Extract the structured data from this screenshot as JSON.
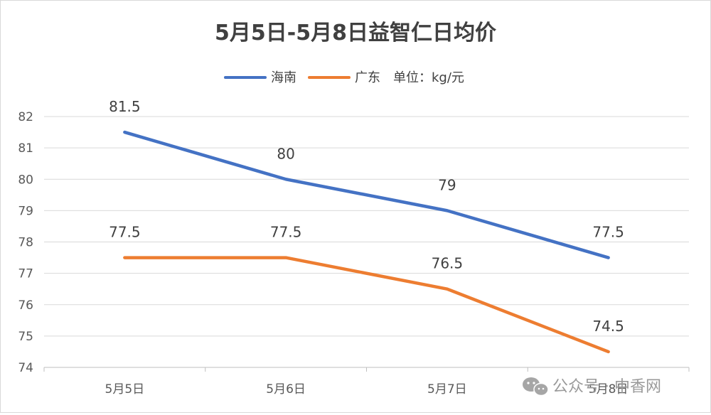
{
  "chart_data": {
    "type": "line",
    "title": "5月5日-5月8日益智仁日均价",
    "categories": [
      "5月5日",
      "5月6日",
      "5月7日",
      "5月8日"
    ],
    "series": [
      {
        "name": "海南",
        "color": "#4472C4",
        "values": [
          81.5,
          80,
          79,
          77.5
        ],
        "labels": [
          "81.5",
          "80",
          "79",
          "77.5"
        ]
      },
      {
        "name": "广东",
        "color": "#ED7D31",
        "values": [
          77.5,
          77.5,
          76.5,
          74.5
        ],
        "labels": [
          "77.5",
          "77.5",
          "76.5",
          "74.5"
        ]
      }
    ],
    "legend_note": "单位：kg/元",
    "ylim": [
      74,
      82
    ],
    "yticks": [
      "74",
      "75",
      "76",
      "77",
      "78",
      "79",
      "80",
      "81",
      "82"
    ],
    "grid": true,
    "legend_position": "top"
  },
  "watermark": {
    "text": "公众号 · 中香网",
    "icon": "wechat-icon"
  }
}
